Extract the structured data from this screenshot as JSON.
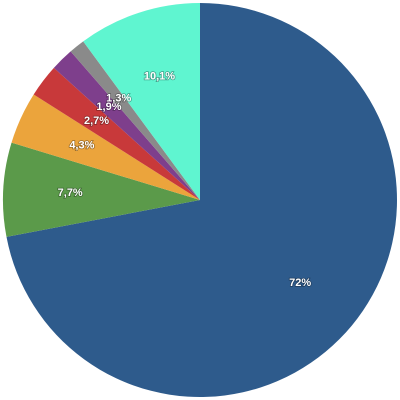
{
  "chart_data": {
    "type": "pie",
    "values": [
      72,
      7.7,
      4.3,
      2.7,
      1.9,
      1.3,
      10.1
    ],
    "value_labels": [
      "72%",
      "7,7%",
      "4,3%",
      "2,7%",
      "1,9%",
      "1,3%",
      "10,1%"
    ],
    "colors": [
      "#2e5b8c",
      "#5b9a4a",
      "#eba43c",
      "#c8393a",
      "#7e3f8c",
      "#8a8a8a",
      "#5ff5d0"
    ]
  }
}
